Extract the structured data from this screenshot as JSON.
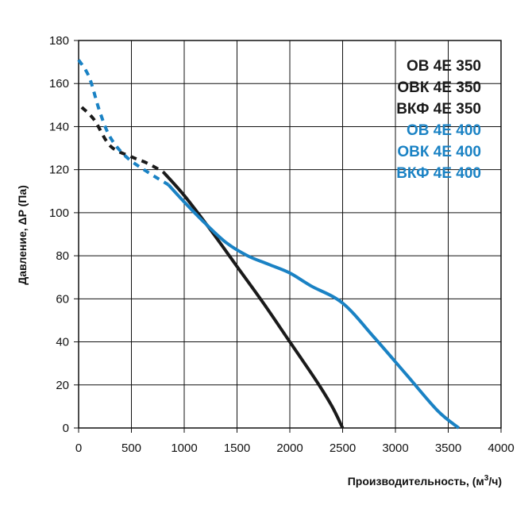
{
  "chart_data": {
    "type": "line",
    "title": "",
    "xlabel": "Производительность, (м³/ч)",
    "xlabel_main": "Производительность, (м",
    "xlabel_sup": "3",
    "xlabel_tail": "/ч)",
    "ylabel": "Давление, ΔP (Па)",
    "xlim": [
      0,
      4000
    ],
    "ylim": [
      0,
      180
    ],
    "xticks": [
      0,
      500,
      1000,
      1500,
      2000,
      2500,
      3000,
      3500,
      4000
    ],
    "yticks": [
      0,
      20,
      40,
      60,
      80,
      100,
      120,
      140,
      160,
      180
    ],
    "grid": true,
    "legend_position": "top-right",
    "legend": [
      {
        "label": "ОВ 4Е 350",
        "color": "#1a1a1a"
      },
      {
        "label": "ОВК 4Е 350",
        "color": "#1a1a1a"
      },
      {
        "label": "ВКФ 4Е 350",
        "color": "#1a1a1a"
      },
      {
        "label": "ОВ 4Е 400",
        "color": "#1a82c4"
      },
      {
        "label": "ОВК 4Е 400",
        "color": "#1a82c4"
      },
      {
        "label": "ВКФ 4Е 400",
        "color": "#1a82c4"
      }
    ],
    "series": [
      {
        "name": "4Е 350",
        "color": "#1a1a1a",
        "dashed": {
          "x": [
            30,
            150,
            300,
            500,
            650,
            800
          ],
          "y": [
            149,
            143,
            131,
            126,
            123,
            119
          ]
        },
        "solid": {
          "x": [
            800,
            1000,
            1250,
            1500,
            1750,
            2000,
            2250,
            2400,
            2500
          ],
          "y": [
            119,
            108,
            92,
            75,
            58,
            40,
            22,
            10,
            0
          ]
        }
      },
      {
        "name": "4Е 400",
        "color": "#1a82c4",
        "dashed": {
          "x": [
            0,
            100,
            200,
            300,
            450,
            650,
            850
          ],
          "y": [
            171,
            163,
            147,
            135,
            126,
            119,
            113
          ]
        },
        "solid": {
          "x": [
            850,
            1000,
            1200,
            1400,
            1600,
            1800,
            2000,
            2200,
            2500,
            2800,
            3100,
            3400,
            3600
          ],
          "y": [
            113,
            105,
            95,
            86,
            80,
            76,
            72,
            66,
            58,
            42,
            25,
            8,
            0
          ]
        }
      }
    ]
  }
}
